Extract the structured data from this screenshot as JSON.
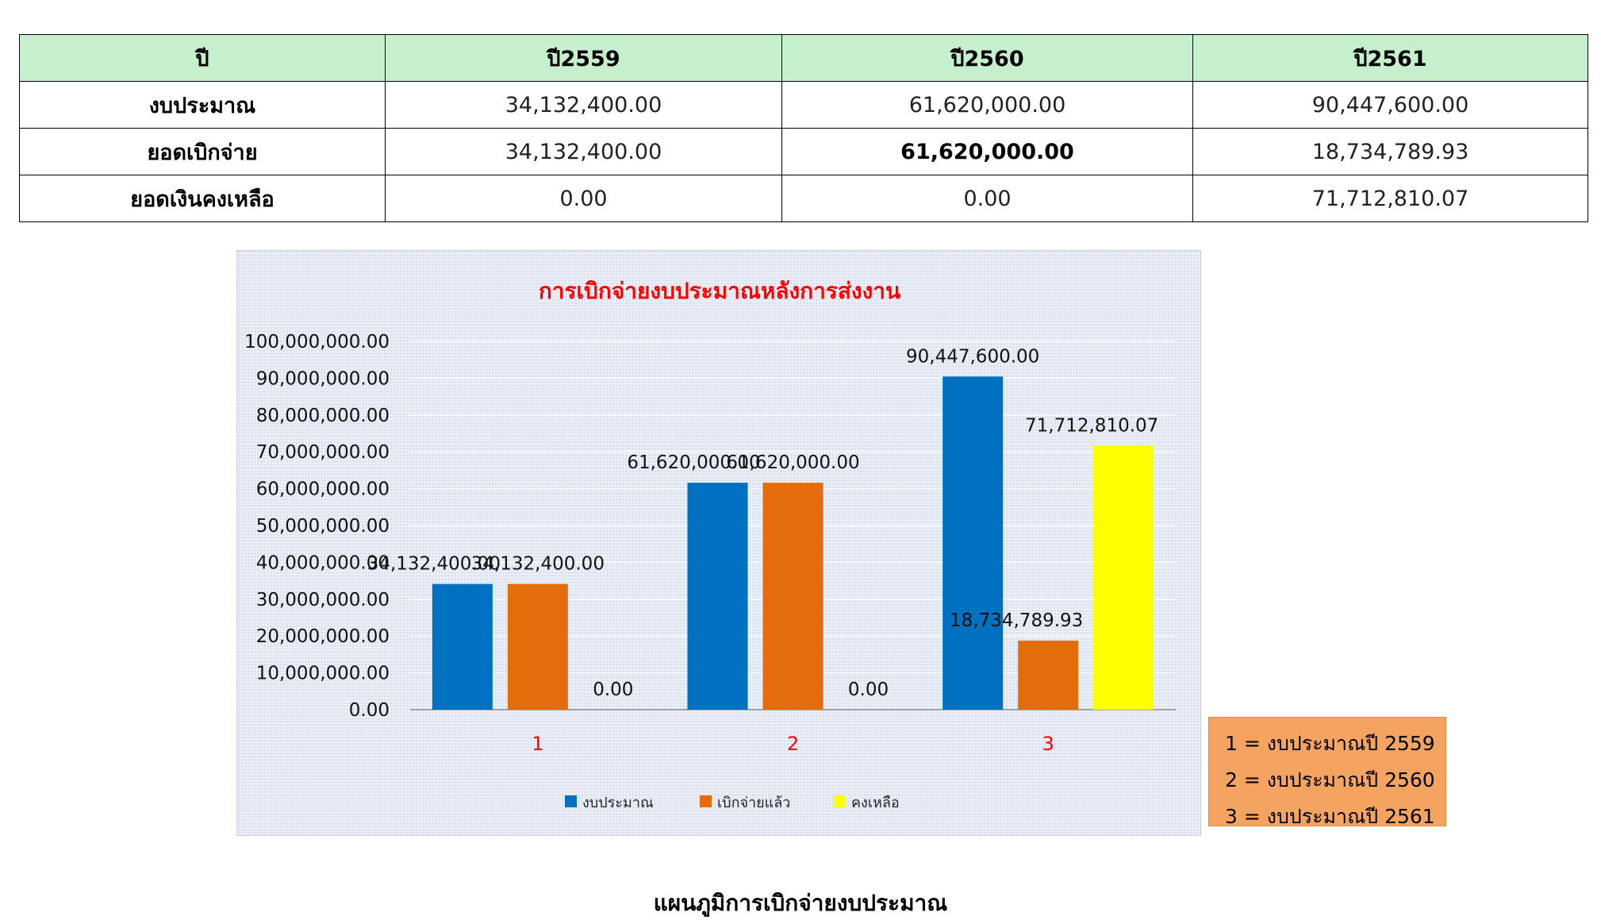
{
  "table": {
    "headers": [
      "ปี",
      "ปี2559",
      "ปี2560",
      "ปี2561"
    ],
    "rows": [
      {
        "label": "งบประมาณ",
        "values": [
          "34,132,400.00",
          "61,620,000.00",
          "90,447,600.00"
        ]
      },
      {
        "label": "ยอดเบิกจ่าย",
        "values": [
          "34,132,400.00",
          "61,620,000.00",
          "18,734,789.93"
        ]
      },
      {
        "label": "ยอดเงินคงเหลือ",
        "values": [
          "0.00",
          "0.00",
          "71,712,810.07"
        ]
      }
    ]
  },
  "chart_data": {
    "type": "bar",
    "title": "การเบิกจ่ายงบประมาณหลังการส่งงาน",
    "categories": [
      "1",
      "2",
      "3"
    ],
    "series": [
      {
        "name": "งบประมาณ",
        "values": [
          34132400,
          61620000,
          90447600
        ],
        "labels": [
          "34,132,400.00",
          "61,620,000.00",
          "90,447,600.00"
        ],
        "color": "#0070c0"
      },
      {
        "name": "เบิกจ่ายแล้ว",
        "values": [
          34132400,
          61620000,
          18734789.93
        ],
        "labels": [
          "34,132,400.00",
          "61,620,000.00",
          "18,734,789.93"
        ],
        "color": "#e46c0a"
      },
      {
        "name": "คงเหลือ",
        "values": [
          0,
          0,
          71712810.07
        ],
        "labels": [
          "0.00",
          "0.00",
          "71,712,810.07"
        ],
        "color": "#ffff00"
      }
    ],
    "ylim": [
      0,
      100000000
    ],
    "yticks": [
      0,
      10000000,
      20000000,
      30000000,
      40000000,
      50000000,
      60000000,
      70000000,
      80000000,
      90000000,
      100000000
    ],
    "ytick_labels": [
      "0.00",
      "10,000,000.00",
      "20,000,000.00",
      "30,000,000.00",
      "40,000,000.00",
      "50,000,000.00",
      "60,000,000.00",
      "70,000,000.00",
      "80,000,000.00",
      "90,000,000.00",
      "100,000,000.00"
    ],
    "grid": true,
    "legend": "bottom",
    "xlabel": "",
    "ylabel": ""
  },
  "colors": {
    "title": "#ff0000",
    "category_label": "#ff0000",
    "header_bg": "#c6efce",
    "note_bg": "#f4a460"
  },
  "note": {
    "lines": [
      "1 = งบประมาณปี 2559",
      "2 = งบประมาณปี 2560",
      "3 = งบประมาณปี 2561"
    ]
  },
  "caption": "แผนภูมิการเบิกจ่ายงบประมาณ"
}
